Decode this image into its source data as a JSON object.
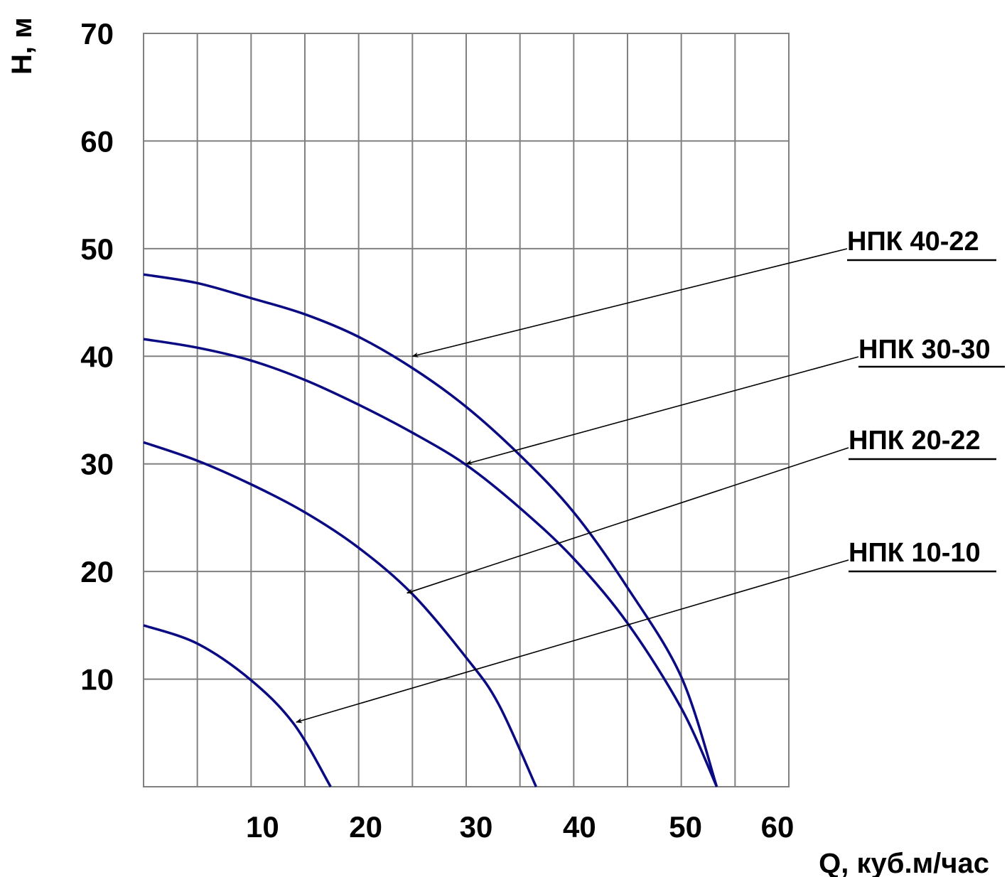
{
  "chart_data": {
    "type": "line",
    "title": "",
    "xlabel": "Q, куб.м/час",
    "ylabel": "H, м",
    "xlim": [
      0,
      60
    ],
    "ylim": [
      0,
      70
    ],
    "x_ticks": [
      "10",
      "20",
      "30",
      "40",
      "50",
      "60"
    ],
    "y_ticks": [
      "10",
      "20",
      "30",
      "40",
      "50",
      "60",
      "70"
    ],
    "grid": true,
    "grid_x_step": 5,
    "grid_y_step": 10,
    "curve_color": "#0a0a82",
    "series": [
      {
        "name": "НПК 40-22",
        "x": [
          0,
          5,
          10,
          15,
          20,
          25,
          30,
          35,
          40,
          45,
          50,
          53.3
        ],
        "y": [
          47.6,
          46.8,
          45.4,
          43.9,
          41.8,
          38.9,
          35.3,
          30.8,
          25.5,
          18.5,
          10.2,
          0
        ],
        "label_anchor": [
          25,
          40
        ]
      },
      {
        "name": "НПК 30-30",
        "x": [
          0,
          5,
          10,
          15,
          20,
          25,
          30,
          35,
          40,
          45,
          50,
          53.3
        ],
        "y": [
          41.6,
          40.8,
          39.6,
          37.8,
          35.5,
          32.9,
          29.9,
          25.9,
          21.2,
          15.2,
          7.3,
          0
        ],
        "label_anchor": [
          30,
          30
        ]
      },
      {
        "name": "НПК 20-22",
        "x": [
          0,
          5,
          10,
          15,
          20,
          25,
          30,
          33,
          36.5
        ],
        "y": [
          32,
          30.3,
          28.1,
          25.5,
          22.2,
          17.9,
          12,
          7.7,
          0
        ],
        "label_anchor": [
          24.5,
          18
        ]
      },
      {
        "name": "НПК 10-10",
        "x": [
          0,
          5,
          10,
          14,
          17.4
        ],
        "y": [
          15,
          13.3,
          9.9,
          5.8,
          0
        ],
        "label_anchor": [
          14.2,
          6
        ]
      }
    ],
    "legend": "right, with leader arrows"
  }
}
